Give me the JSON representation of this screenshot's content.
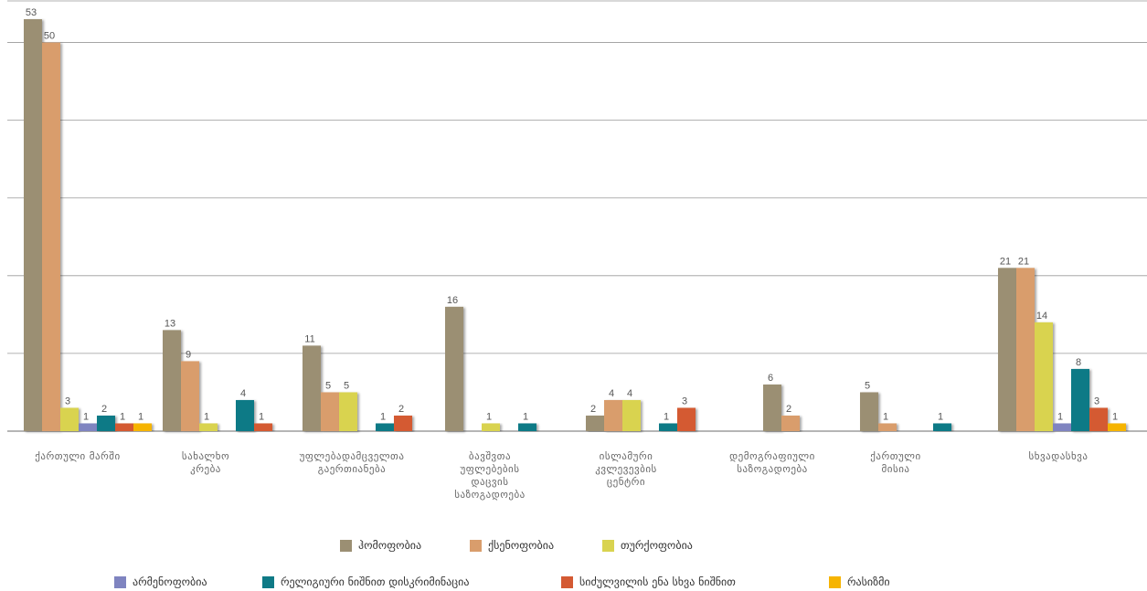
{
  "chart_data": {
    "type": "bar",
    "title": "",
    "xlabel": "",
    "ylabel": "",
    "ylim": [
      0,
      55
    ],
    "grid": true,
    "legend_position": "bottom",
    "categories": [
      [
        "ქართული მარში"
      ],
      [
        "სახალხო",
        "კრება"
      ],
      [
        "უფლებადამცველთა",
        "გაერთიანება"
      ],
      [
        "ბავშვთა",
        "უფლებების",
        "დაცვის",
        "საზოგადოება"
      ],
      [
        "ისლამური",
        "კვლევევბის",
        "ცენტრი"
      ],
      [
        "დემოგრაფიული",
        "საზოგადოება"
      ],
      [
        "ქართული",
        "მისია"
      ],
      [
        "სხვადასხვა"
      ]
    ],
    "series": [
      {
        "name": "ჰომოფობია",
        "color": "#9b8f73",
        "values": [
          53,
          13,
          11,
          16,
          2,
          6,
          5,
          21
        ]
      },
      {
        "name": "ქსენოფობია",
        "color": "#d99d6c",
        "values": [
          50,
          9,
          5,
          null,
          4,
          2,
          1,
          21
        ]
      },
      {
        "name": "თურქოფობია",
        "color": "#d9d350",
        "values": [
          3,
          1,
          5,
          1,
          4,
          null,
          null,
          14
        ]
      },
      {
        "name": "არმენოფობია",
        "color": "#7f84c0",
        "values": [
          1,
          null,
          null,
          null,
          null,
          null,
          null,
          1
        ]
      },
      {
        "name": "რელიგიური ნიშნით დისკრიმინაცია",
        "color": "#0f7a86",
        "values": [
          2,
          4,
          1,
          1,
          1,
          null,
          1,
          8
        ]
      },
      {
        "name": "სიძულვილის ენა სხვა ნიშნით",
        "color": "#d45a33",
        "values": [
          1,
          1,
          2,
          null,
          3,
          null,
          null,
          3
        ]
      },
      {
        "name": "რასიზმი",
        "color": "#f6b400",
        "values": [
          1,
          null,
          null,
          null,
          null,
          null,
          null,
          1
        ]
      }
    ]
  }
}
